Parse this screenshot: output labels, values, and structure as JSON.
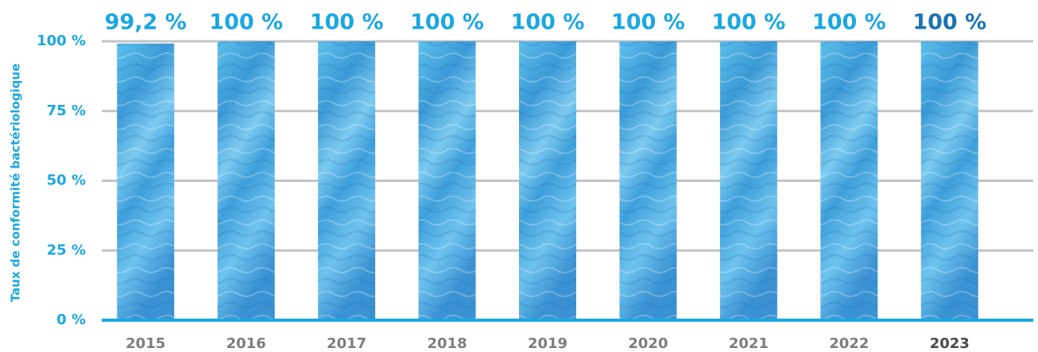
{
  "chart_data": {
    "type": "bar",
    "y_label": "Taux de conformité bactériologique",
    "categories": [
      "2015",
      "2016",
      "2017",
      "2018",
      "2019",
      "2020",
      "2021",
      "2022",
      "2023"
    ],
    "values": [
      99.2,
      100,
      100,
      100,
      100,
      100,
      100,
      100,
      100
    ],
    "value_labels": [
      "99,2 %",
      "100 %",
      "100 %",
      "100 %",
      "100 %",
      "100 %",
      "100 %",
      "100 %",
      "100 %"
    ],
    "value_label_colors": [
      "#1ba7e1",
      "#1ba7e1",
      "#1ba7e1",
      "#1ba7e1",
      "#1ba7e1",
      "#1ba7e1",
      "#1ba7e1",
      "#1ba7e1",
      "#1b73b3"
    ],
    "category_colors": [
      "#7d7d7d",
      "#7d7d7d",
      "#7d7d7d",
      "#7d7d7d",
      "#7d7d7d",
      "#7d7d7d",
      "#7d7d7d",
      "#7d7d7d",
      "#4a4a4a"
    ],
    "color": "#4cb0e4",
    "axis_color": "#1ba7e1",
    "grid_color": "#c4c4c4",
    "ylim": [
      0,
      100
    ],
    "yticks": [
      {
        "value": 0,
        "label": "0 %"
      },
      {
        "value": 25,
        "label": "25 %"
      },
      {
        "value": 50,
        "label": "50 %"
      },
      {
        "value": 75,
        "label": "75 %"
      },
      {
        "value": 100,
        "label": "100 %"
      }
    ],
    "grid": true
  }
}
